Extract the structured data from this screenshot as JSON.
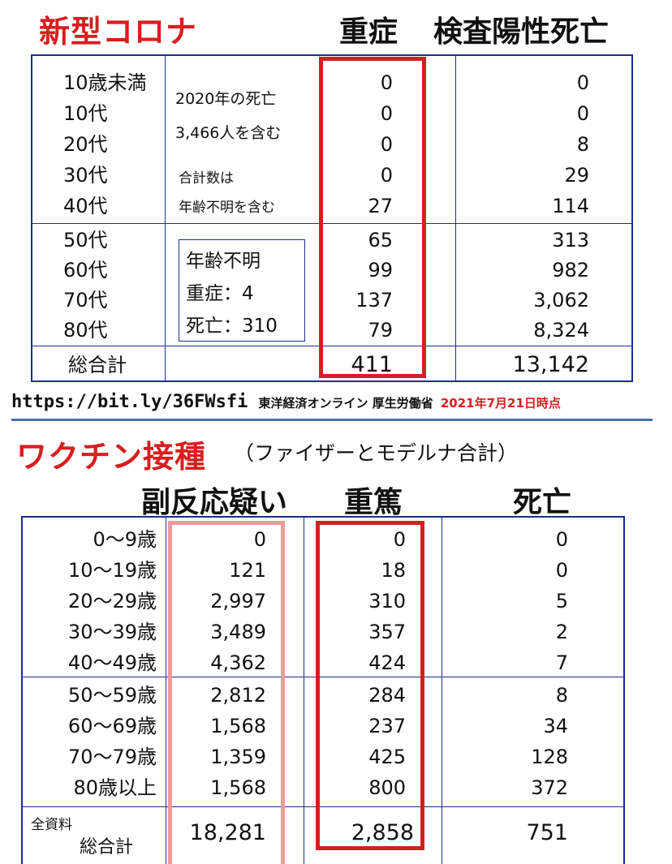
{
  "section1": {
    "title": "新型コロナ",
    "col_severe": "重症",
    "col_deaths": "検査陽性死亡",
    "rows": [
      {
        "age": "10歳未満",
        "severe": "0",
        "deaths": "0"
      },
      {
        "age": "10代",
        "severe": "0",
        "deaths": "0"
      },
      {
        "age": "20代",
        "severe": "0",
        "deaths": "8"
      },
      {
        "age": "30代",
        "severe": "0",
        "deaths": "29"
      },
      {
        "age": "40代",
        "severe": "27",
        "deaths": "114"
      },
      {
        "age": "50代",
        "severe": "65",
        "deaths": "313"
      },
      {
        "age": "60代",
        "severe": "99",
        "deaths": "982"
      },
      {
        "age": "70代",
        "severe": "137",
        "deaths": "3,062"
      },
      {
        "age": "80代",
        "severe": "79",
        "deaths": "8,324"
      }
    ],
    "total_label": "総合計",
    "total_severe": "411",
    "total_deaths": "13,142",
    "note1_line1": "2020年の死亡",
    "note1_line2": "3,466人を含む",
    "note2_line1": "合計数は",
    "note2_line2": "年齢不明を含む",
    "unknown_line1": "年齢不明",
    "unknown_line2": "重症：4",
    "unknown_line3": "死亡：310"
  },
  "source": {
    "url": "https://bit.ly/36FWsfi",
    "publisher": "東洋経済オンライン 厚生労働省",
    "date": "2021年7月21日時点"
  },
  "section2": {
    "title": "ワクチン接種",
    "subtitle": "（ファイザーとモデルナ合計）",
    "col_adverse": "副反応疑い",
    "col_serious": "重篤",
    "col_deaths": "死亡",
    "rows": [
      {
        "age": "0～9歳",
        "adverse": "0",
        "serious": "0",
        "deaths": "0"
      },
      {
        "age": "10～19歳",
        "adverse": "121",
        "serious": "18",
        "deaths": "0"
      },
      {
        "age": "20～29歳",
        "adverse": "2,997",
        "serious": "310",
        "deaths": "5"
      },
      {
        "age": "30～39歳",
        "adverse": "3,489",
        "serious": "357",
        "deaths": "2"
      },
      {
        "age": "40～49歳",
        "adverse": "4,362",
        "serious": "424",
        "deaths": "7"
      },
      {
        "age": "50～59歳",
        "adverse": "2,812",
        "serious": "284",
        "deaths": "8"
      },
      {
        "age": "60～69歳",
        "adverse": "1,568",
        "serious": "237",
        "deaths": "34"
      },
      {
        "age": "70～79歳",
        "adverse": "1,359",
        "serious": "425",
        "deaths": "128"
      },
      {
        "age": "80歳以上",
        "adverse": "1,568",
        "serious": "800",
        "deaths": "372"
      }
    ],
    "total_label_top": "全資料",
    "total_label": "総合計",
    "total_adverse": "18,281",
    "total_serious": "2,858",
    "total_deaths": "751"
  }
}
